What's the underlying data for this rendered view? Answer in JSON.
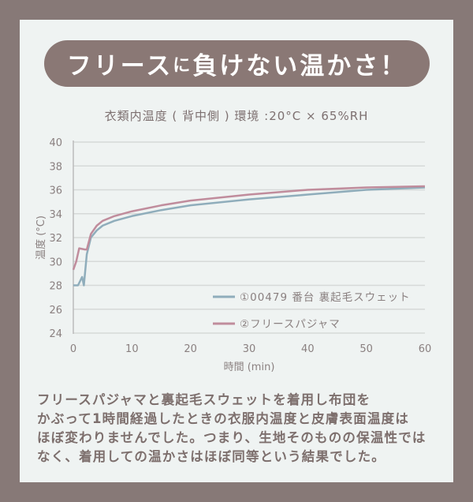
{
  "title": {
    "part1": "フリース",
    "part2": "に",
    "part3": "負けない温かさ！"
  },
  "chart_data": {
    "type": "line",
    "title": "衣類内温度 ( 背中側 ) 環境 :20°C × 65%RH",
    "xlabel": "時間 (min)",
    "ylabel": "温度 (°C)",
    "xlim": [
      0,
      60
    ],
    "ylim": [
      24,
      40
    ],
    "xticks": [
      "0",
      "10",
      "20",
      "30",
      "40",
      "50",
      "60"
    ],
    "yticks": [
      "24",
      "26",
      "28",
      "30",
      "32",
      "34",
      "36",
      "38",
      "40"
    ],
    "grid": true,
    "legend_position": "bottom-right",
    "series": [
      {
        "name": "①00479 番台 裏起毛スウェット",
        "color": "#8fadbb",
        "x": [
          0,
          0.8,
          1.5,
          1.8,
          2.3,
          3,
          4,
          5,
          7,
          10,
          15,
          20,
          30,
          40,
          50,
          60
        ],
        "y": [
          28,
          28,
          28.7,
          28,
          30.6,
          32,
          32.6,
          33,
          33.4,
          33.8,
          34.3,
          34.7,
          35.2,
          35.6,
          36,
          36.2
        ]
      },
      {
        "name": "②フリースパジャマ",
        "color": "#c08c9c",
        "x": [
          0,
          0.5,
          1,
          2,
          2.3,
          3,
          4,
          5,
          7,
          10,
          15,
          20,
          30,
          40,
          50,
          60
        ],
        "y": [
          29.3,
          30,
          31.1,
          31,
          31,
          32.3,
          33,
          33.4,
          33.8,
          34.2,
          34.7,
          35.1,
          35.6,
          36,
          36.2,
          36.3
        ]
      }
    ]
  },
  "body": {
    "lines": [
      "フリースパジャマと裏起毛スウェットを着用し布団を",
      "かぶって1時間経過したときの衣服内温度と皮膚表面温度は",
      "ほぼ変わりませんでした。つまり、生地そのものの保温性では",
      "なく、着用しての温かさはほぼ同等という結果でした。"
    ]
  }
}
